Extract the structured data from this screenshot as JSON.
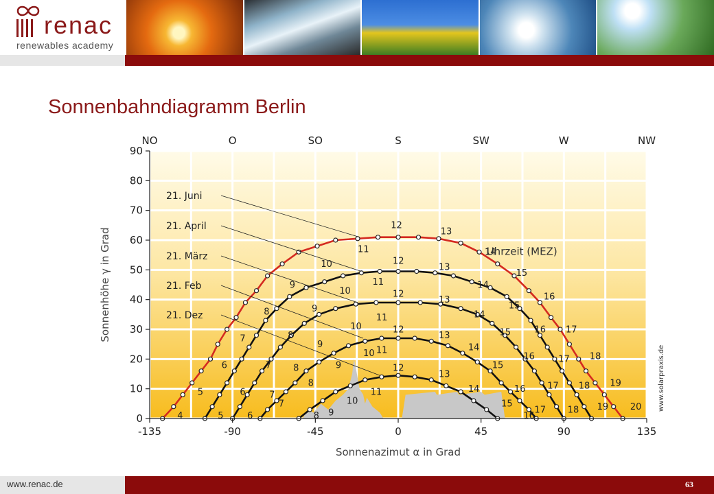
{
  "logo": {
    "name": "renac",
    "subtitle": "renewables academy"
  },
  "slide": {
    "title": "Sonnenbahndiagramm Berlin",
    "footer_url": "www.renac.de",
    "page_number": "63"
  },
  "colors": {
    "brand_red": "#8b0b0b",
    "title_red": "#8b1a1a",
    "june_curve": "#d42a20",
    "curve": "#111111",
    "terrain": "#c8c8c8"
  },
  "chart_data": {
    "type": "line",
    "xlabel": "Sonnenazimut α in Grad",
    "ylabel": "Sonnenhöhe γ in Grad",
    "xlim": [
      -135,
      135
    ],
    "ylim": [
      0,
      90
    ],
    "x_ticks": [
      "-135",
      "-90",
      "-45",
      "0",
      "45",
      "90",
      "135"
    ],
    "y_ticks": [
      "0",
      "10",
      "20",
      "30",
      "40",
      "50",
      "60",
      "70",
      "80",
      "90"
    ],
    "compass_labels": [
      "NO",
      "O",
      "SO",
      "S",
      "SW",
      "W",
      "NW"
    ],
    "annotation": "Uhrzeit (MEZ)",
    "credit": "www.solarpraxis.de",
    "grid": true,
    "series": [
      {
        "name": "21. Juni",
        "color": "red",
        "points": [
          [
            -128,
            0
          ],
          [
            -122,
            4
          ],
          [
            -117,
            8
          ],
          [
            -112,
            12
          ],
          [
            -107,
            16
          ],
          [
            -102,
            20
          ],
          [
            -98,
            25
          ],
          [
            -93,
            30
          ],
          [
            -88,
            34
          ],
          [
            -83,
            39
          ],
          [
            -77,
            43
          ],
          [
            -71,
            48
          ],
          [
            -63,
            52
          ],
          [
            -54,
            56
          ],
          [
            -44,
            58
          ],
          [
            -34,
            60
          ],
          [
            -22,
            60.5
          ],
          [
            -11,
            61
          ],
          [
            0,
            61
          ],
          [
            11,
            61
          ],
          [
            22,
            60.5
          ],
          [
            34,
            59
          ],
          [
            44,
            56
          ],
          [
            54,
            52
          ],
          [
            63,
            48
          ],
          [
            71,
            43
          ],
          [
            77,
            39
          ],
          [
            83,
            34
          ],
          [
            88,
            30
          ],
          [
            93,
            25
          ],
          [
            98,
            20
          ],
          [
            102,
            16
          ],
          [
            107,
            12
          ],
          [
            112,
            8
          ],
          [
            117,
            4
          ],
          [
            122,
            0
          ]
        ],
        "hour_labels": [
          {
            "t": "4",
            "x": -120,
            "y": 0
          },
          {
            "t": "5",
            "x": -109,
            "y": 8
          },
          {
            "t": "6",
            "x": -96,
            "y": 17
          },
          {
            "t": "7",
            "x": -86,
            "y": 26
          },
          {
            "t": "8",
            "x": -73,
            "y": 35
          },
          {
            "t": "9",
            "x": -59,
            "y": 44
          },
          {
            "t": "10",
            "x": -42,
            "y": 51
          },
          {
            "t": "11",
            "x": -22,
            "y": 56
          },
          {
            "t": "12",
            "x": -4,
            "y": 64
          },
          {
            "t": "13",
            "x": 23,
            "y": 62
          },
          {
            "t": "14",
            "x": 47,
            "y": 55
          },
          {
            "t": "15",
            "x": 64,
            "y": 48
          },
          {
            "t": "16",
            "x": 79,
            "y": 40
          },
          {
            "t": "17",
            "x": 91,
            "y": 29
          },
          {
            "t": "18",
            "x": 104,
            "y": 20
          },
          {
            "t": "19",
            "x": 115,
            "y": 11
          },
          {
            "t": "20",
            "x": 126,
            "y": 3
          }
        ]
      },
      {
        "name": "21. April",
        "color": "black",
        "points": [
          [
            -105,
            0
          ],
          [
            -101,
            4
          ],
          [
            -97,
            8
          ],
          [
            -93,
            12
          ],
          [
            -89,
            16
          ],
          [
            -85,
            20
          ],
          [
            -81,
            24
          ],
          [
            -77,
            28
          ],
          [
            -72,
            33
          ],
          [
            -66,
            37
          ],
          [
            -59,
            41
          ],
          [
            -50,
            44
          ],
          [
            -40,
            46
          ],
          [
            -30,
            48
          ],
          [
            -20,
            49
          ],
          [
            -10,
            49.5
          ],
          [
            0,
            49.5
          ],
          [
            10,
            49.5
          ],
          [
            20,
            49
          ],
          [
            30,
            48
          ],
          [
            40,
            46
          ],
          [
            50,
            44
          ],
          [
            59,
            41
          ],
          [
            66,
            37
          ],
          [
            72,
            33
          ],
          [
            77,
            28
          ],
          [
            81,
            24
          ],
          [
            85,
            20
          ],
          [
            89,
            16
          ],
          [
            93,
            12
          ],
          [
            97,
            8
          ],
          [
            101,
            4
          ],
          [
            105,
            0
          ]
        ],
        "hour_labels": [
          {
            "t": "5",
            "x": -98,
            "y": 0
          },
          {
            "t": "6",
            "x": -86,
            "y": 8
          },
          {
            "t": "7",
            "x": -72,
            "y": 17
          },
          {
            "t": "8",
            "x": -60,
            "y": 27
          },
          {
            "t": "9",
            "x": -47,
            "y": 36
          },
          {
            "t": "10",
            "x": -32,
            "y": 42
          },
          {
            "t": "11",
            "x": -14,
            "y": 45
          },
          {
            "t": "12",
            "x": -3,
            "y": 52
          },
          {
            "t": "13",
            "x": 22,
            "y": 50
          },
          {
            "t": "14",
            "x": 43,
            "y": 44
          },
          {
            "t": "15",
            "x": 60,
            "y": 37
          },
          {
            "t": "16",
            "x": 74,
            "y": 29
          },
          {
            "t": "17",
            "x": 87,
            "y": 19
          },
          {
            "t": "18",
            "x": 98,
            "y": 10
          },
          {
            "t": "19",
            "x": 108,
            "y": 3
          }
        ]
      },
      {
        "name": "21. März",
        "color": "black",
        "points": [
          [
            -90,
            0
          ],
          [
            -86,
            4
          ],
          [
            -82,
            8
          ],
          [
            -78,
            12
          ],
          [
            -74,
            16
          ],
          [
            -69,
            20
          ],
          [
            -64,
            24
          ],
          [
            -58,
            28
          ],
          [
            -51,
            32
          ],
          [
            -43,
            35
          ],
          [
            -34,
            37
          ],
          [
            -23,
            38.5
          ],
          [
            -12,
            39
          ],
          [
            0,
            39
          ],
          [
            12,
            39
          ],
          [
            23,
            38.5
          ],
          [
            34,
            37
          ],
          [
            43,
            35
          ],
          [
            51,
            32
          ],
          [
            58,
            28
          ],
          [
            64,
            24
          ],
          [
            69,
            20
          ],
          [
            74,
            16
          ],
          [
            78,
            12
          ],
          [
            82,
            8
          ],
          [
            86,
            4
          ],
          [
            90,
            0
          ]
        ],
        "hour_labels": [
          {
            "t": "6",
            "x": -82,
            "y": 0
          },
          {
            "t": "7",
            "x": -70,
            "y": 7
          },
          {
            "t": "8",
            "x": -57,
            "y": 16
          },
          {
            "t": "9",
            "x": -44,
            "y": 24
          },
          {
            "t": "10",
            "x": -26,
            "y": 30
          },
          {
            "t": "11",
            "x": -12,
            "y": 33
          },
          {
            "t": "12",
            "x": -3,
            "y": 41
          },
          {
            "t": "13",
            "x": 22,
            "y": 39
          },
          {
            "t": "14",
            "x": 41,
            "y": 34
          },
          {
            "t": "15",
            "x": 55,
            "y": 28
          },
          {
            "t": "16",
            "x": 68,
            "y": 20
          },
          {
            "t": "17",
            "x": 81,
            "y": 10
          },
          {
            "t": "18",
            "x": 92,
            "y": 2
          }
        ]
      },
      {
        "name": "21. Feb",
        "color": "black",
        "points": [
          [
            -75,
            0
          ],
          [
            -71,
            3
          ],
          [
            -66,
            6
          ],
          [
            -61,
            9
          ],
          [
            -56,
            12
          ],
          [
            -50,
            16
          ],
          [
            -43,
            19
          ],
          [
            -35,
            22
          ],
          [
            -27,
            24.5
          ],
          [
            -18,
            26
          ],
          [
            -9,
            27
          ],
          [
            0,
            27
          ],
          [
            9,
            27
          ],
          [
            18,
            26
          ],
          [
            27,
            24.5
          ],
          [
            35,
            22
          ],
          [
            43,
            19
          ],
          [
            50,
            16
          ],
          [
            56,
            12
          ],
          [
            61,
            9
          ],
          [
            66,
            6
          ],
          [
            71,
            3
          ],
          [
            75,
            0
          ]
        ],
        "hour_labels": [
          {
            "t": "7",
            "x": -65,
            "y": 4
          },
          {
            "t": "8",
            "x": -49,
            "y": 11
          },
          {
            "t": "9",
            "x": -34,
            "y": 17
          },
          {
            "t": "10",
            "x": -19,
            "y": 21
          },
          {
            "t": "11",
            "x": -12,
            "y": 22
          },
          {
            "t": "12",
            "x": -3,
            "y": 29
          },
          {
            "t": "13",
            "x": 22,
            "y": 27
          },
          {
            "t": "14",
            "x": 38,
            "y": 23
          },
          {
            "t": "15",
            "x": 51,
            "y": 17
          },
          {
            "t": "16",
            "x": 63,
            "y": 9
          },
          {
            "t": "17",
            "x": 74,
            "y": 2
          }
        ]
      },
      {
        "name": "21. Dez",
        "color": "black",
        "points": [
          [
            -54,
            0
          ],
          [
            -48,
            3
          ],
          [
            -41,
            6
          ],
          [
            -34,
            9
          ],
          [
            -26,
            11
          ],
          [
            -18,
            13
          ],
          [
            -9,
            14
          ],
          [
            0,
            14.5
          ],
          [
            9,
            14
          ],
          [
            18,
            13
          ],
          [
            26,
            11
          ],
          [
            34,
            9
          ],
          [
            41,
            6
          ],
          [
            48,
            3
          ],
          [
            54,
            0
          ]
        ],
        "hour_labels": [
          {
            "t": "8",
            "x": -46,
            "y": 0
          },
          {
            "t": "9",
            "x": -38,
            "y": 1
          },
          {
            "t": "10",
            "x": -28,
            "y": 5
          },
          {
            "t": "11",
            "x": -15,
            "y": 8
          },
          {
            "t": "12",
            "x": -3,
            "y": 16
          },
          {
            "t": "13",
            "x": 22,
            "y": 14
          },
          {
            "t": "14",
            "x": 38,
            "y": 9
          },
          {
            "t": "15",
            "x": 56,
            "y": 4
          },
          {
            "t": "16",
            "x": 68,
            "y": 0
          }
        ]
      }
    ]
  }
}
